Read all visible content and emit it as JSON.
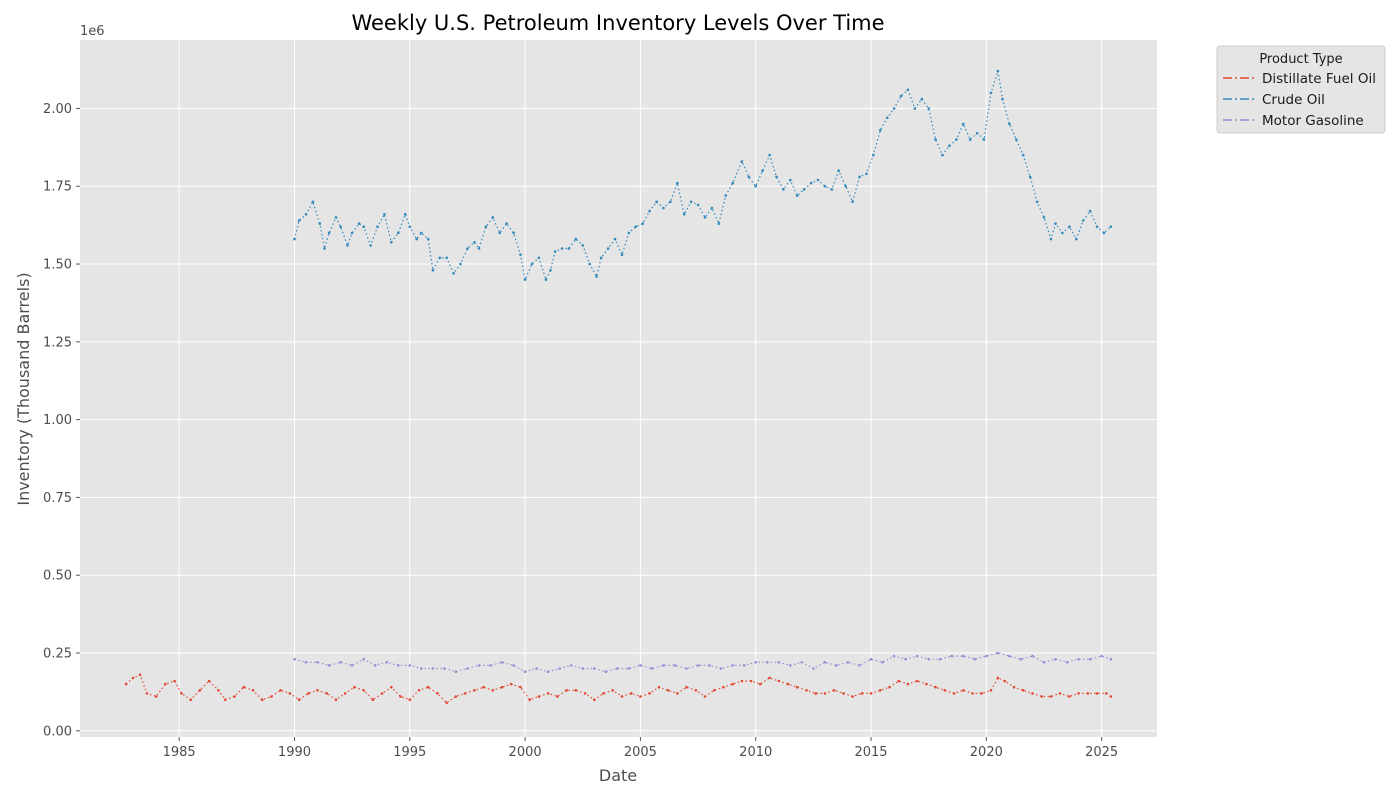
{
  "chart_data": {
    "type": "line",
    "title": "Weekly U.S. Petroleum Inventory Levels Over Time",
    "xlabel": "Date",
    "ylabel": "Inventory (Thousand Barrels)",
    "y_offset_label": "1e6",
    "xlim": [
      1980.7,
      2027.4
    ],
    "ylim": [
      -0.02,
      2.22
    ],
    "y_unit_multiplier": 1000000,
    "x_ticks": [
      1985,
      1990,
      1995,
      2000,
      2005,
      2010,
      2015,
      2020,
      2025
    ],
    "y_ticks": [
      0.0,
      0.25,
      0.5,
      0.75,
      1.0,
      1.25,
      1.5,
      1.75,
      2.0
    ],
    "y_tick_labels": [
      "0.00",
      "0.25",
      "0.50",
      "0.75",
      "1.00",
      "1.25",
      "1.50",
      "1.75",
      "2.00"
    ],
    "grid": true,
    "legend_title": "Product Type",
    "legend_position": "outside-top-right",
    "colors": {
      "background": "#e5e5e5",
      "grid": "#ffffff",
      "distillate": "#e24a33",
      "crude": "#348abd",
      "gasoline": "#988ed5"
    },
    "series": [
      {
        "name": "Distillate Fuel Oil",
        "color": "#e24a33",
        "x": [
          1982.7,
          1983.0,
          1983.3,
          1983.6,
          1984.0,
          1984.4,
          1984.8,
          1985.1,
          1985.5,
          1985.9,
          1986.3,
          1986.7,
          1987.0,
          1987.4,
          1987.8,
          1988.2,
          1988.6,
          1989.0,
          1989.4,
          1989.8,
          1990.2,
          1990.6,
          1991.0,
          1991.4,
          1991.8,
          1992.2,
          1992.6,
          1993.0,
          1993.4,
          1993.8,
          1994.2,
          1994.6,
          1995.0,
          1995.4,
          1995.8,
          1996.2,
          1996.6,
          1997.0,
          1997.4,
          1997.8,
          1998.2,
          1998.6,
          1999.0,
          1999.4,
          1999.8,
          2000.2,
          2000.6,
          2001.0,
          2001.4,
          2001.8,
          2002.2,
          2002.6,
          2003.0,
          2003.4,
          2003.8,
          2004.2,
          2004.6,
          2005.0,
          2005.4,
          2005.8,
          2006.2,
          2006.6,
          2007.0,
          2007.4,
          2007.8,
          2008.2,
          2008.6,
          2009.0,
          2009.4,
          2009.8,
          2010.2,
          2010.6,
          2011.0,
          2011.4,
          2011.8,
          2012.2,
          2012.6,
          2013.0,
          2013.4,
          2013.8,
          2014.2,
          2014.6,
          2015.0,
          2015.4,
          2015.8,
          2016.2,
          2016.6,
          2017.0,
          2017.4,
          2017.8,
          2018.2,
          2018.6,
          2019.0,
          2019.4,
          2019.8,
          2020.2,
          2020.5,
          2020.8,
          2021.2,
          2021.6,
          2022.0,
          2022.4,
          2022.8,
          2023.2,
          2023.6,
          2024.0,
          2024.4,
          2024.8,
          2025.2,
          2025.4
        ],
        "values": [
          0.15,
          0.17,
          0.18,
          0.12,
          0.11,
          0.15,
          0.16,
          0.12,
          0.1,
          0.13,
          0.16,
          0.13,
          0.1,
          0.11,
          0.14,
          0.13,
          0.1,
          0.11,
          0.13,
          0.12,
          0.1,
          0.12,
          0.13,
          0.12,
          0.1,
          0.12,
          0.14,
          0.13,
          0.1,
          0.12,
          0.14,
          0.11,
          0.1,
          0.13,
          0.14,
          0.12,
          0.09,
          0.11,
          0.12,
          0.13,
          0.14,
          0.13,
          0.14,
          0.15,
          0.14,
          0.1,
          0.11,
          0.12,
          0.11,
          0.13,
          0.13,
          0.12,
          0.1,
          0.12,
          0.13,
          0.11,
          0.12,
          0.11,
          0.12,
          0.14,
          0.13,
          0.12,
          0.14,
          0.13,
          0.11,
          0.13,
          0.14,
          0.15,
          0.16,
          0.16,
          0.15,
          0.17,
          0.16,
          0.15,
          0.14,
          0.13,
          0.12,
          0.12,
          0.13,
          0.12,
          0.11,
          0.12,
          0.12,
          0.13,
          0.14,
          0.16,
          0.15,
          0.16,
          0.15,
          0.14,
          0.13,
          0.12,
          0.13,
          0.12,
          0.12,
          0.13,
          0.17,
          0.16,
          0.14,
          0.13,
          0.12,
          0.11,
          0.11,
          0.12,
          0.11,
          0.12,
          0.12,
          0.12,
          0.12,
          0.11
        ]
      },
      {
        "name": "Crude Oil",
        "color": "#348abd",
        "x": [
          1990.0,
          1990.2,
          1990.5,
          1990.8,
          1991.1,
          1991.3,
          1991.5,
          1991.8,
          1992.0,
          1992.3,
          1992.5,
          1992.8,
          1993.0,
          1993.3,
          1993.6,
          1993.9,
          1994.2,
          1994.5,
          1994.8,
          1995.0,
          1995.3,
          1995.5,
          1995.8,
          1996.0,
          1996.3,
          1996.6,
          1996.9,
          1997.2,
          1997.5,
          1997.8,
          1998.0,
          1998.3,
          1998.6,
          1998.9,
          1999.2,
          1999.5,
          1999.8,
          2000.0,
          2000.3,
          2000.6,
          2000.9,
          2001.1,
          2001.3,
          2001.6,
          2001.9,
          2002.2,
          2002.5,
          2002.8,
          2003.1,
          2003.3,
          2003.6,
          2003.9,
          2004.2,
          2004.5,
          2004.8,
          2005.1,
          2005.4,
          2005.7,
          2006.0,
          2006.3,
          2006.6,
          2006.9,
          2007.2,
          2007.5,
          2007.8,
          2008.1,
          2008.4,
          2008.7,
          2009.0,
          2009.4,
          2009.7,
          2010.0,
          2010.3,
          2010.6,
          2010.9,
          2011.2,
          2011.5,
          2011.8,
          2012.1,
          2012.4,
          2012.7,
          2013.0,
          2013.3,
          2013.6,
          2013.9,
          2014.2,
          2014.5,
          2014.8,
          2015.1,
          2015.4,
          2015.7,
          2016.0,
          2016.3,
          2016.6,
          2016.9,
          2017.2,
          2017.5,
          2017.8,
          2018.1,
          2018.4,
          2018.7,
          2019.0,
          2019.3,
          2019.6,
          2019.9,
          2020.2,
          2020.5,
          2020.7,
          2021.0,
          2021.3,
          2021.6,
          2021.9,
          2022.2,
          2022.5,
          2022.8,
          2023.0,
          2023.3,
          2023.6,
          2023.9,
          2024.2,
          2024.5,
          2024.8,
          2025.1,
          2025.4
        ],
        "values": [
          1.58,
          1.64,
          1.66,
          1.7,
          1.63,
          1.55,
          1.6,
          1.65,
          1.62,
          1.56,
          1.6,
          1.63,
          1.62,
          1.56,
          1.62,
          1.66,
          1.57,
          1.6,
          1.66,
          1.62,
          1.58,
          1.6,
          1.58,
          1.48,
          1.52,
          1.52,
          1.47,
          1.5,
          1.55,
          1.57,
          1.55,
          1.62,
          1.65,
          1.6,
          1.63,
          1.6,
          1.53,
          1.45,
          1.5,
          1.52,
          1.45,
          1.48,
          1.54,
          1.55,
          1.55,
          1.58,
          1.56,
          1.5,
          1.46,
          1.52,
          1.55,
          1.58,
          1.53,
          1.6,
          1.62,
          1.63,
          1.67,
          1.7,
          1.68,
          1.7,
          1.76,
          1.66,
          1.7,
          1.69,
          1.65,
          1.68,
          1.63,
          1.72,
          1.76,
          1.83,
          1.78,
          1.75,
          1.8,
          1.85,
          1.78,
          1.74,
          1.77,
          1.72,
          1.74,
          1.76,
          1.77,
          1.75,
          1.74,
          1.8,
          1.75,
          1.7,
          1.78,
          1.79,
          1.85,
          1.93,
          1.97,
          2.0,
          2.04,
          2.06,
          2.0,
          2.03,
          2.0,
          1.9,
          1.85,
          1.88,
          1.9,
          1.95,
          1.9,
          1.92,
          1.9,
          2.05,
          2.12,
          2.03,
          1.95,
          1.9,
          1.85,
          1.78,
          1.7,
          1.65,
          1.58,
          1.63,
          1.6,
          1.62,
          1.58,
          1.64,
          1.67,
          1.62,
          1.6,
          1.62
        ]
      },
      {
        "name": "Motor Gasoline",
        "color": "#988ed5",
        "x": [
          1990.0,
          1990.5,
          1991.0,
          1991.5,
          1992.0,
          1992.5,
          1993.0,
          1993.5,
          1994.0,
          1994.5,
          1995.0,
          1995.5,
          1996.0,
          1996.5,
          1997.0,
          1997.5,
          1998.0,
          1998.5,
          1999.0,
          1999.5,
          2000.0,
          2000.5,
          2001.0,
          2001.5,
          2002.0,
          2002.5,
          2003.0,
          2003.5,
          2004.0,
          2004.5,
          2005.0,
          2005.5,
          2006.0,
          2006.5,
          2007.0,
          2007.5,
          2008.0,
          2008.5,
          2009.0,
          2009.5,
          2010.0,
          2010.5,
          2011.0,
          2011.5,
          2012.0,
          2012.5,
          2013.0,
          2013.5,
          2014.0,
          2014.5,
          2015.0,
          2015.5,
          2016.0,
          2016.5,
          2017.0,
          2017.5,
          2018.0,
          2018.5,
          2019.0,
          2019.5,
          2020.0,
          2020.5,
          2021.0,
          2021.5,
          2022.0,
          2022.5,
          2023.0,
          2023.5,
          2024.0,
          2024.5,
          2025.0,
          2025.4
        ],
        "values": [
          0.23,
          0.22,
          0.22,
          0.21,
          0.22,
          0.21,
          0.23,
          0.21,
          0.22,
          0.21,
          0.21,
          0.2,
          0.2,
          0.2,
          0.19,
          0.2,
          0.21,
          0.21,
          0.22,
          0.21,
          0.19,
          0.2,
          0.19,
          0.2,
          0.21,
          0.2,
          0.2,
          0.19,
          0.2,
          0.2,
          0.21,
          0.2,
          0.21,
          0.21,
          0.2,
          0.21,
          0.21,
          0.2,
          0.21,
          0.21,
          0.22,
          0.22,
          0.22,
          0.21,
          0.22,
          0.2,
          0.22,
          0.21,
          0.22,
          0.21,
          0.23,
          0.22,
          0.24,
          0.23,
          0.24,
          0.23,
          0.23,
          0.24,
          0.24,
          0.23,
          0.24,
          0.25,
          0.24,
          0.23,
          0.24,
          0.22,
          0.23,
          0.22,
          0.23,
          0.23,
          0.24,
          0.23
        ]
      }
    ]
  }
}
